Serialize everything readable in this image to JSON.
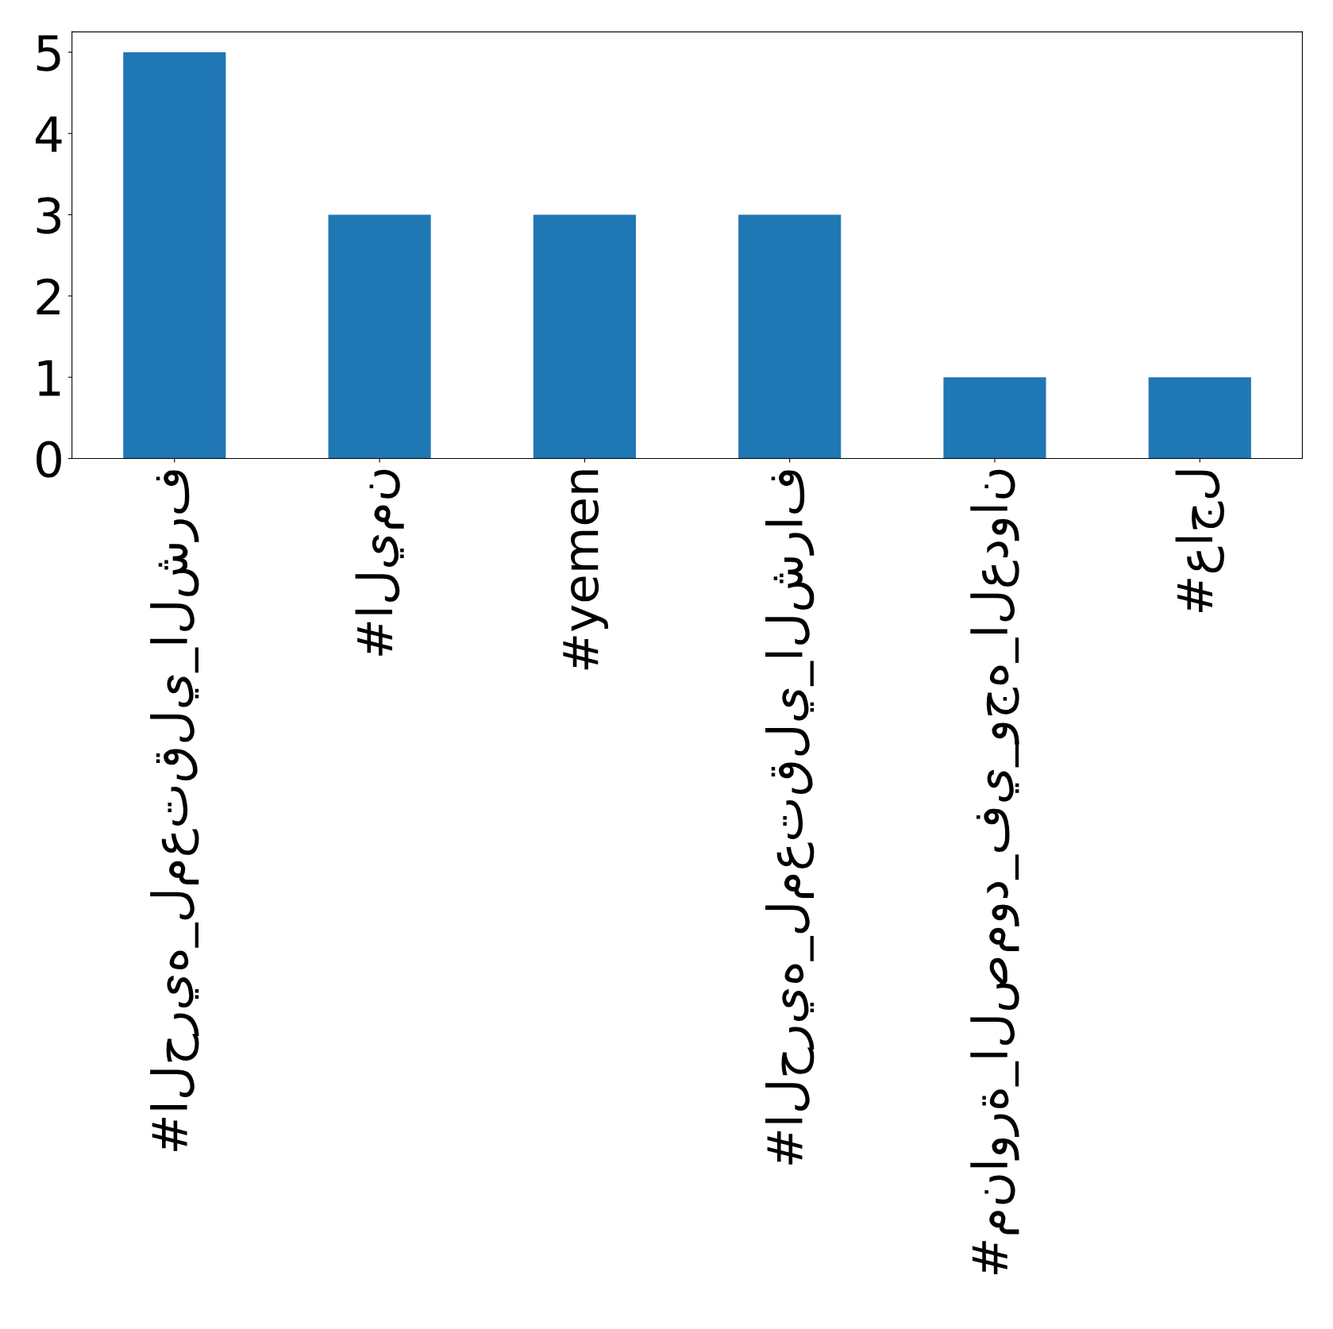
{
  "chart_data": {
    "type": "bar",
    "categories": [
      "#الحريه_لمعتقلي_الشرف",
      "#اليمن",
      "#yemen",
      "#الحريه_لمعتقلي_الشراف",
      "#مناورة_الصمود_في_وجه_العدوان",
      "#عاجل"
    ],
    "values": [
      5,
      3,
      3,
      3,
      1,
      1
    ],
    "color": "#1f77b4",
    "ylim": [
      0,
      5.25
    ],
    "yticks": [
      0,
      1,
      2,
      3,
      4,
      5
    ],
    "grid": false,
    "legend": false
  }
}
